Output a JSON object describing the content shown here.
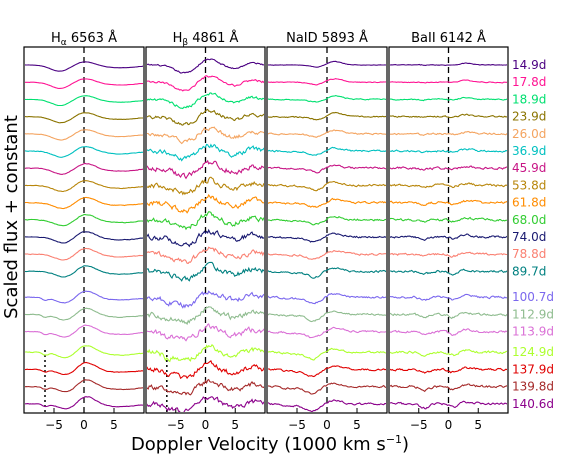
{
  "figure": {
    "ylabel": "Scaled flux + constant",
    "xlabel": "Doppler Velocity (1000 km s",
    "xlabel_superscript": "−1",
    "xlabel_close": ")"
  },
  "chart_data": {
    "type": "line",
    "xlabel": "Doppler Velocity (1000 km s^-1)",
    "ylabel": "Scaled flux + constant",
    "xlim": [
      -10,
      10
    ],
    "x_ticks": [
      -5,
      0,
      5
    ],
    "x_tick_labels": [
      "−5",
      "0",
      "5"
    ],
    "panels": [
      {
        "title_main": "H",
        "title_sub": "α",
        "title_rest": " 6563 Å",
        "marker_v": -6.5
      },
      {
        "title_main": "H",
        "title_sub": "β",
        "title_rest": " 4861 Å",
        "marker_v": -6.5
      },
      {
        "title_main": "NaID 5893 Å",
        "title_sub": "",
        "title_rest": "",
        "marker_v": null
      },
      {
        "title_main": "BaII 6142 Å",
        "title_sub": "",
        "title_rest": "",
        "marker_v": null
      }
    ],
    "series": [
      {
        "epoch": "14.9d",
        "color": "#4b0082",
        "offset": 0
      },
      {
        "epoch": "17.8d",
        "color": "#ff1493",
        "offset": 1
      },
      {
        "epoch": "18.9d",
        "color": "#00e070",
        "offset": 2
      },
      {
        "epoch": "23.9d",
        "color": "#8b7400",
        "offset": 3
      },
      {
        "epoch": "26.0d",
        "color": "#f4a460",
        "offset": 4
      },
      {
        "epoch": "36.9d",
        "color": "#00c0c0",
        "offset": 5
      },
      {
        "epoch": "45.9d",
        "color": "#c71585",
        "offset": 6
      },
      {
        "epoch": "53.8d",
        "color": "#b8860b",
        "offset": 7
      },
      {
        "epoch": "61.8d",
        "color": "#ff8c00",
        "offset": 8
      },
      {
        "epoch": "68.0d",
        "color": "#32cd32",
        "offset": 9
      },
      {
        "epoch": "74.0d",
        "color": "#191970",
        "offset": 10
      },
      {
        "epoch": "78.8d",
        "color": "#fa8072",
        "offset": 11
      },
      {
        "epoch": "89.7d",
        "color": "#008080",
        "offset": 12
      },
      {
        "epoch": "100.7d",
        "color": "#7b68ee",
        "offset": 13.5
      },
      {
        "epoch": "112.9d",
        "color": "#8fbc8f",
        "offset": 14.5
      },
      {
        "epoch": "113.9d",
        "color": "#da70d6",
        "offset": 15.5
      },
      {
        "epoch": "124.9d",
        "color": "#adff2f",
        "offset": 16.7
      },
      {
        "epoch": "137.9d",
        "color": "#e00000",
        "offset": 17.7
      },
      {
        "epoch": "139.8d",
        "color": "#a52a2a",
        "offset": 18.7
      },
      {
        "epoch": "140.6d",
        "color": "#8b008b",
        "offset": 19.7
      }
    ]
  }
}
